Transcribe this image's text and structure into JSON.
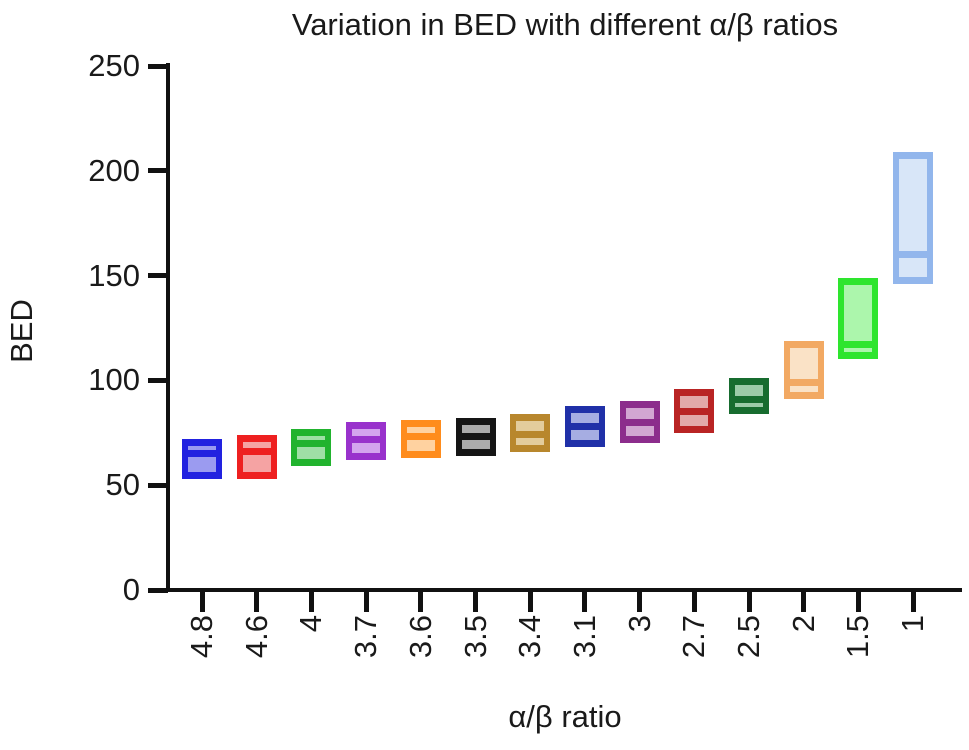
{
  "chart_data": {
    "type": "bar",
    "subtype": "floating-bar-min-max-with-mean-line",
    "title": "Variation in BED with different α/β ratios",
    "xlabel": "α/β ratio",
    "ylabel": "BED",
    "ylim": [
      0,
      250
    ],
    "y_ticks": [
      0,
      50,
      100,
      150,
      200,
      250
    ],
    "grid": false,
    "legend": "none",
    "categories": [
      "4.8",
      "4.6",
      "4",
      "3.7",
      "3.6",
      "3.5",
      "3.4",
      "3.1",
      "3",
      "2.7",
      "2.5",
      "2",
      "1.5",
      "1"
    ],
    "bars": [
      {
        "category": "4.8",
        "min": 53,
        "max": 72,
        "mean": 65,
        "color": "#2222E0",
        "fill_color": "#9B9BF0"
      },
      {
        "category": "4.6",
        "min": 53,
        "max": 74,
        "mean": 66,
        "color": "#EE2020",
        "fill_color": "#F5A3A3"
      },
      {
        "category": "4",
        "min": 59,
        "max": 77,
        "mean": 70,
        "color": "#21B32E",
        "fill_color": "#9FDFA5"
      },
      {
        "category": "3.7",
        "min": 62,
        "max": 80,
        "mean": 72,
        "color": "#9932CC",
        "fill_color": "#D4A4EE"
      },
      {
        "category": "3.6",
        "min": 63,
        "max": 81,
        "mean": 73,
        "color": "#FF8C1C",
        "fill_color": "#FFD2A0"
      },
      {
        "category": "3.5",
        "min": 64,
        "max": 82,
        "mean": 73,
        "color": "#151515",
        "fill_color": "#ABABAB"
      },
      {
        "category": "3.4",
        "min": 66,
        "max": 84,
        "mean": 74,
        "color": "#B8872D",
        "fill_color": "#E3CC9C"
      },
      {
        "category": "3.1",
        "min": 68,
        "max": 88,
        "mean": 78,
        "color": "#2030A8",
        "fill_color": "#A6ADE2"
      },
      {
        "category": "3",
        "min": 70,
        "max": 90,
        "mean": 80,
        "color": "#8C2D8C",
        "fill_color": "#D2A6D2"
      },
      {
        "category": "2.7",
        "min": 75,
        "max": 96,
        "mean": 85,
        "color": "#B92424",
        "fill_color": "#E2A9A9"
      },
      {
        "category": "2.5",
        "min": 84,
        "max": 101,
        "mean": 91,
        "color": "#176C2F",
        "fill_color": "#9CCBA8"
      },
      {
        "category": "2",
        "min": 91,
        "max": 119,
        "mean": 99,
        "color": "#F2A963",
        "fill_color": "#FAE2C6"
      },
      {
        "category": "1.5",
        "min": 110,
        "max": 149,
        "mean": 117,
        "color": "#2EE52E",
        "fill_color": "#ACF6AC"
      },
      {
        "category": "1",
        "min": 146,
        "max": 209,
        "mean": 160,
        "color": "#92B6EC",
        "fill_color": "#D8E6F8"
      }
    ]
  }
}
